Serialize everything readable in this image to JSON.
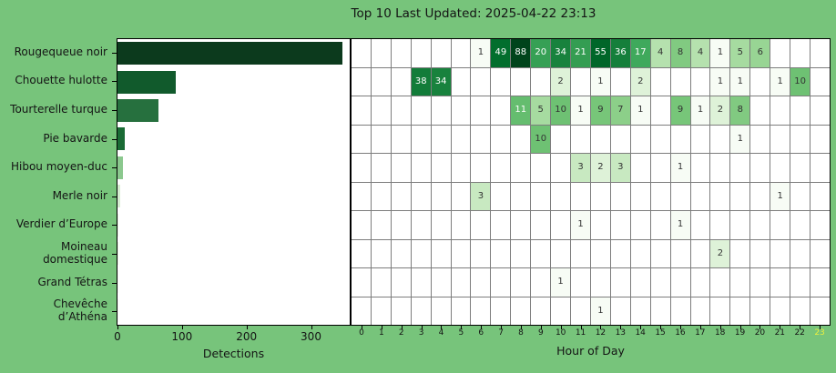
{
  "title": "Top 10 Last Updated: 2025-04-22 23:13",
  "colors": {
    "background": "#77c47b",
    "plot_background": "#ffffff",
    "grid": "#7d7d7d",
    "axis": "#000000",
    "text": "#141414",
    "highlight_tick": "#e8ee3f",
    "cell_text_dark": "#333333",
    "cell_text_light": "#ffffff",
    "greens_scale": [
      "#f7fcf5",
      "#e5f5e0",
      "#c7e9c0",
      "#a1d99b",
      "#74c476",
      "#41ab5d",
      "#238b45",
      "#006d2c",
      "#00441b"
    ]
  },
  "chart_data": [
    {
      "type": "bar",
      "orientation": "horizontal",
      "xlabel": "Detections",
      "xticks": [
        0,
        100,
        200,
        300
      ],
      "xlim": [
        0,
        360
      ],
      "categories": [
        "Rougequeue noir",
        "Chouette hulotte",
        "Tourterelle turque",
        "Pie bavarde",
        "Hibou moyen-duc",
        "Merle noir",
        "Verdier d’Europe",
        "Moineau domestique",
        "Grand Tétras",
        "Chevêche d’Athéna"
      ],
      "values": [
        349,
        90,
        64,
        11,
        9,
        4,
        2,
        2,
        1,
        1
      ],
      "bar_colors": [
        "#0c3a1d",
        "#115a2c",
        "#26703e",
        "#1a6b35",
        "#8bc88e",
        "#d6eed1",
        "#e8f6e3",
        "#e8f6e3",
        "#f2faef",
        "#f2faef"
      ]
    },
    {
      "type": "heatmap",
      "xlabel": "Hour of Day",
      "xticks": [
        0,
        1,
        2,
        3,
        4,
        5,
        6,
        7,
        8,
        9,
        10,
        11,
        12,
        13,
        14,
        15,
        16,
        17,
        18,
        19,
        20,
        21,
        22,
        23
      ],
      "highlight_xtick": 23,
      "colormap": "Greens",
      "norm": "log",
      "vmin": 1,
      "vmax": 88,
      "categories": [
        "Rougequeue noir",
        "Chouette hulotte",
        "Tourterelle turque",
        "Pie bavarde",
        "Hibou moyen-duc",
        "Merle noir",
        "Verdier d’Europe",
        "Moineau domestique",
        "Grand Tétras",
        "Chevêche d’Athéna"
      ],
      "series": [
        {
          "name": "Rougequeue noir",
          "values": [
            null,
            null,
            null,
            null,
            null,
            null,
            1,
            49,
            88,
            20,
            34,
            21,
            55,
            36,
            17,
            4,
            8,
            4,
            1,
            5,
            6,
            null,
            null,
            null
          ]
        },
        {
          "name": "Chouette hulotte",
          "values": [
            null,
            null,
            null,
            38,
            34,
            null,
            null,
            null,
            null,
            null,
            2,
            null,
            1,
            null,
            2,
            null,
            null,
            null,
            1,
            1,
            null,
            1,
            10,
            null
          ]
        },
        {
          "name": "Tourterelle turque",
          "values": [
            null,
            null,
            null,
            null,
            null,
            null,
            null,
            null,
            11,
            5,
            10,
            1,
            9,
            7,
            1,
            null,
            9,
            1,
            2,
            8,
            null,
            null,
            null,
            null
          ]
        },
        {
          "name": "Pie bavarde",
          "values": [
            null,
            null,
            null,
            null,
            null,
            null,
            null,
            null,
            null,
            10,
            null,
            null,
            null,
            null,
            null,
            null,
            null,
            null,
            null,
            1,
            null,
            null,
            null,
            null
          ]
        },
        {
          "name": "Hibou moyen-duc",
          "values": [
            null,
            null,
            null,
            null,
            null,
            null,
            null,
            null,
            null,
            null,
            null,
            3,
            2,
            3,
            null,
            null,
            1,
            null,
            null,
            null,
            null,
            null,
            null,
            null
          ]
        },
        {
          "name": "Merle noir",
          "values": [
            null,
            null,
            null,
            null,
            null,
            null,
            3,
            null,
            null,
            null,
            null,
            null,
            null,
            null,
            null,
            null,
            null,
            null,
            null,
            null,
            null,
            1,
            null,
            null
          ]
        },
        {
          "name": "Verdier d’Europe",
          "values": [
            null,
            null,
            null,
            null,
            null,
            null,
            null,
            null,
            null,
            null,
            null,
            1,
            null,
            null,
            null,
            null,
            1,
            null,
            null,
            null,
            null,
            null,
            null,
            null
          ]
        },
        {
          "name": "Moineau domestique",
          "values": [
            null,
            null,
            null,
            null,
            null,
            null,
            null,
            null,
            null,
            null,
            null,
            null,
            null,
            null,
            null,
            null,
            null,
            null,
            2,
            null,
            null,
            null,
            null,
            null
          ]
        },
        {
          "name": "Grand Tétras",
          "values": [
            null,
            null,
            null,
            null,
            null,
            null,
            null,
            null,
            null,
            null,
            1,
            null,
            null,
            null,
            null,
            null,
            null,
            null,
            null,
            null,
            null,
            null,
            null,
            null
          ]
        },
        {
          "name": "Chevêche d’Athéna",
          "values": [
            null,
            null,
            null,
            null,
            null,
            null,
            null,
            null,
            null,
            null,
            null,
            null,
            1,
            null,
            null,
            null,
            null,
            null,
            null,
            null,
            null,
            null,
            null,
            null
          ]
        }
      ]
    }
  ]
}
